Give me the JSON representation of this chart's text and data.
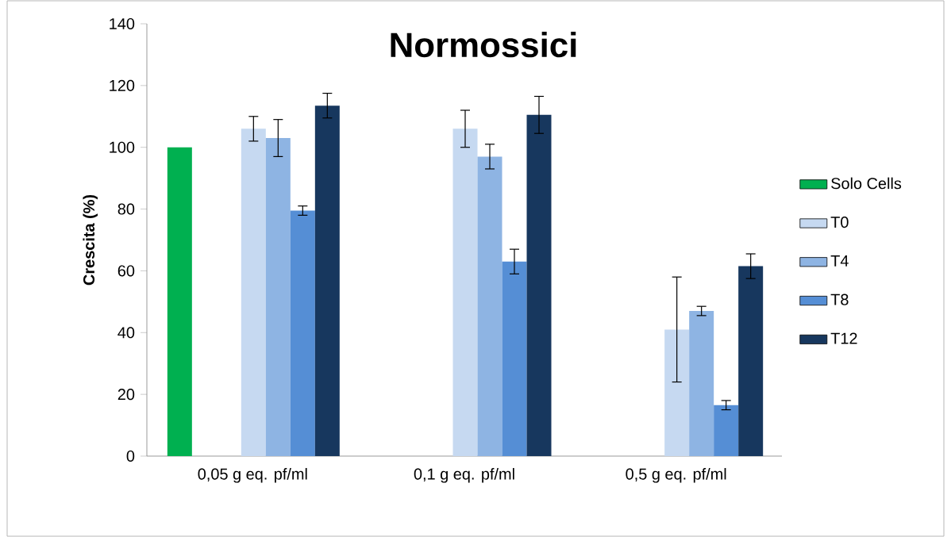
{
  "chart_data": {
    "type": "bar",
    "title": "Normossici",
    "ylabel": "Crescita (%)",
    "categories": [
      "0,05 g eq. pf/ml",
      "0,1 g eq. pf/ml",
      "0,5 g eq. pf/ml"
    ],
    "series": [
      {
        "name": "Solo Cells",
        "color": "#00b050",
        "values": [
          100,
          null,
          null
        ]
      },
      {
        "name": "T0",
        "color": "#c6d9f1",
        "values": [
          106,
          106,
          41
        ],
        "errors": [
          4,
          6,
          17
        ]
      },
      {
        "name": "T4",
        "color": "#8eb4e3",
        "values": [
          103,
          97,
          47
        ],
        "errors": [
          6,
          4,
          1.5
        ]
      },
      {
        "name": "T8",
        "color": "#558ed5",
        "values": [
          79.5,
          63,
          16.5
        ],
        "errors": [
          1.5,
          4,
          1.5
        ]
      },
      {
        "name": "T12",
        "color": "#17375e",
        "values": [
          113.5,
          110.5,
          61.5
        ],
        "errors": [
          4,
          6,
          4
        ]
      }
    ],
    "ylim": [
      0,
      140
    ],
    "yticks": [
      0,
      20,
      40,
      60,
      80,
      100,
      120,
      140
    ],
    "grid": false,
    "legend": "right"
  }
}
